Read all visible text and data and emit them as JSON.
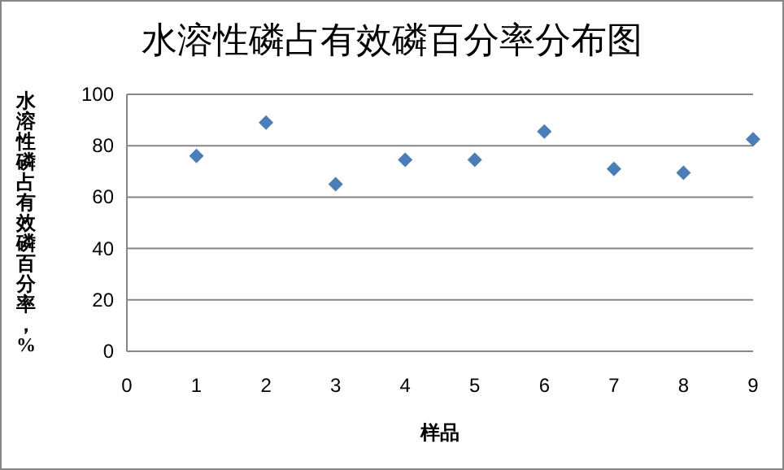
{
  "chart_data": {
    "type": "scatter",
    "title": "水溶性磷占有效磷百分率分布图",
    "xlabel": "样品",
    "ylabel": "水溶性磷占有效磷百分率，%",
    "x": [
      1,
      2,
      3,
      4,
      5,
      6,
      7,
      8,
      9
    ],
    "series": [
      {
        "color": "#4a7ebb",
        "values": [
          76,
          89,
          65,
          74.5,
          74.5,
          85.5,
          71,
          69.5,
          82.5
        ]
      }
    ],
    "xlim": [
      0,
      9
    ],
    "xticks": [
      0,
      1,
      2,
      3,
      4,
      5,
      6,
      7,
      8,
      9
    ],
    "ylim": [
      0,
      100
    ],
    "yticks": [
      0,
      20,
      40,
      60,
      80,
      100
    ],
    "grid": "y",
    "marker": "diamond"
  }
}
